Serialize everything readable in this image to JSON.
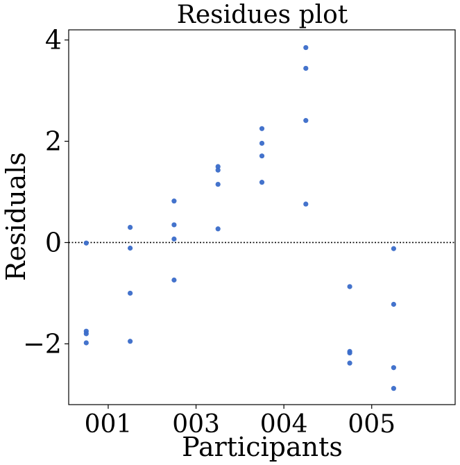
{
  "chart_data": {
    "type": "scatter",
    "title": "Residues plot",
    "xlabel": "Participants",
    "ylabel": "Residuals",
    "ylim": [
      -3.2,
      4.2
    ],
    "xlim": [
      -0.45,
      3.95
    ],
    "x_ticks": [
      {
        "label": "001",
        "value": 0
      },
      {
        "label": "003",
        "value": 1
      },
      {
        "label": "004",
        "value": 2
      },
      {
        "label": "005",
        "value": 3
      }
    ],
    "y_ticks": [
      {
        "label": "4",
        "value": 4
      },
      {
        "label": "2",
        "value": 2
      },
      {
        "label": "0",
        "value": 0
      },
      {
        "label": "−2",
        "value": -2
      }
    ],
    "reference_line": {
      "y": 0,
      "style": "dotted"
    },
    "grid": false,
    "marker_color": "#3a6bc9",
    "points": [
      {
        "x": -0.25,
        "y": -0.01
      },
      {
        "x": -0.25,
        "y": -1.75
      },
      {
        "x": -0.25,
        "y": -1.8
      },
      {
        "x": -0.25,
        "y": -1.98
      },
      {
        "x": 0.25,
        "y": 0.3
      },
      {
        "x": 0.25,
        "y": -0.11
      },
      {
        "x": 0.25,
        "y": -1.0
      },
      {
        "x": 0.25,
        "y": -1.95
      },
      {
        "x": 0.75,
        "y": 0.82
      },
      {
        "x": 0.75,
        "y": 0.35
      },
      {
        "x": 0.75,
        "y": 0.07
      },
      {
        "x": 0.75,
        "y": -0.74
      },
      {
        "x": 1.25,
        "y": 1.5
      },
      {
        "x": 1.25,
        "y": 1.43
      },
      {
        "x": 1.25,
        "y": 1.15
      },
      {
        "x": 1.25,
        "y": 0.27
      },
      {
        "x": 1.75,
        "y": 2.25
      },
      {
        "x": 1.75,
        "y": 1.96
      },
      {
        "x": 1.75,
        "y": 1.71
      },
      {
        "x": 1.75,
        "y": 1.19
      },
      {
        "x": 2.25,
        "y": 3.85
      },
      {
        "x": 2.25,
        "y": 3.44
      },
      {
        "x": 2.25,
        "y": 2.41
      },
      {
        "x": 2.25,
        "y": 0.76
      },
      {
        "x": 2.75,
        "y": -0.87
      },
      {
        "x": 2.75,
        "y": -2.15
      },
      {
        "x": 2.75,
        "y": -2.18
      },
      {
        "x": 2.75,
        "y": -2.38
      },
      {
        "x": 3.25,
        "y": -0.12
      },
      {
        "x": 3.25,
        "y": -1.22
      },
      {
        "x": 3.25,
        "y": -2.47
      },
      {
        "x": 3.25,
        "y": -2.88
      }
    ]
  }
}
